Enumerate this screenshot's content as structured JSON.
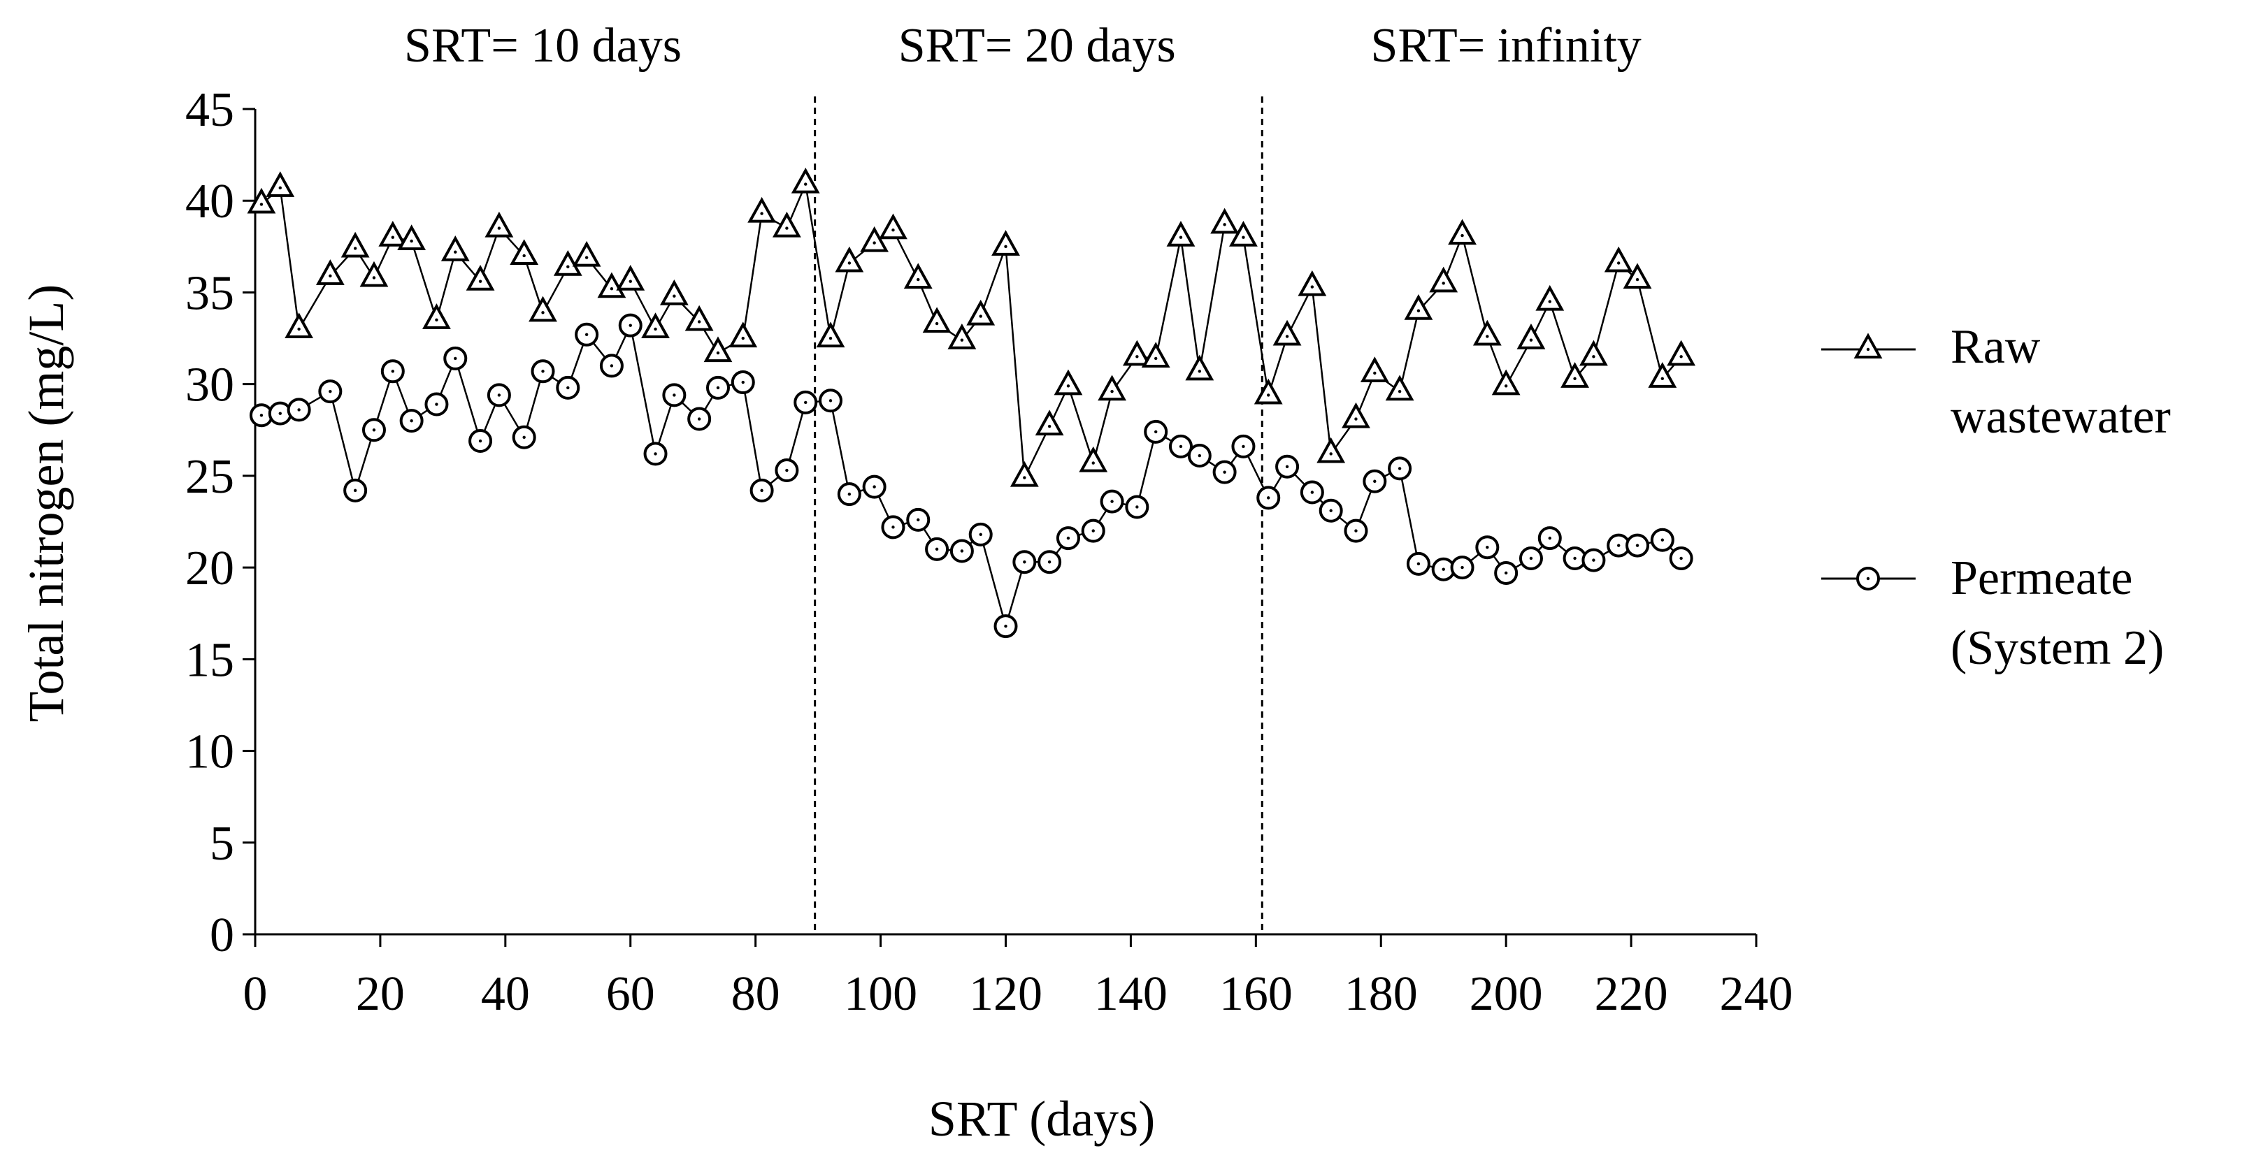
{
  "chart_data": {
    "type": "line",
    "title": "",
    "xlabel": "SRT (days)",
    "ylabel": "Total nitrogen (mg/L)",
    "xlim": [
      0,
      240
    ],
    "ylim": [
      0,
      45
    ],
    "x_ticks": [
      "0",
      "20",
      "40",
      "60",
      "80",
      "100",
      "120",
      "140",
      "160",
      "180",
      "200",
      "220",
      "240"
    ],
    "y_ticks": [
      "0",
      "5",
      "10",
      "15",
      "20",
      "25",
      "30",
      "35",
      "40",
      "45"
    ],
    "grid": false,
    "legend_position": "right",
    "phase_labels": [
      {
        "text": "SRT= 10 days",
        "x": 46
      },
      {
        "text": "SRT= 20 days",
        "x": 125
      },
      {
        "text": "SRT= infinity",
        "x": 200
      }
    ],
    "phase_boundaries": [
      89.5,
      161
    ],
    "series": [
      {
        "name": "Raw wastewater",
        "marker": "triangle",
        "x": [
          1,
          4,
          7,
          12,
          16,
          19,
          22,
          25,
          29,
          32,
          36,
          39,
          43,
          46,
          50,
          53,
          57,
          60,
          64,
          67,
          71,
          74,
          78,
          81,
          85,
          88,
          92,
          95,
          99,
          102,
          106,
          109,
          113,
          116,
          120,
          123,
          127,
          130,
          134,
          137,
          141,
          144,
          148,
          151,
          155,
          158,
          162,
          165,
          169,
          172,
          176,
          179,
          183,
          186,
          190,
          193,
          197,
          200,
          204,
          207,
          211,
          214,
          218,
          221,
          225,
          228
        ],
        "values": [
          39.8,
          40.7,
          33.0,
          35.9,
          37.4,
          35.8,
          38.0,
          37.8,
          33.5,
          37.2,
          35.6,
          38.5,
          37.0,
          33.9,
          36.4,
          36.9,
          35.2,
          35.6,
          33.0,
          34.8,
          33.4,
          31.7,
          32.5,
          39.3,
          38.5,
          40.9,
          32.5,
          36.6,
          37.7,
          38.4,
          35.7,
          33.3,
          32.4,
          33.7,
          37.5,
          24.9,
          27.7,
          29.9,
          25.7,
          29.6,
          31.5,
          31.4,
          38.0,
          30.7,
          38.7,
          38.0,
          29.4,
          32.6,
          35.3,
          26.2,
          28.1,
          30.6,
          29.6,
          34.0,
          35.5,
          38.1,
          32.6,
          29.9,
          32.4,
          34.5,
          30.3,
          31.5,
          36.6,
          35.7,
          30.3,
          31.5
        ]
      },
      {
        "name": "Permeate (System 2)",
        "marker": "circle",
        "x": [
          1,
          4,
          7,
          12,
          16,
          19,
          22,
          25,
          29,
          32,
          36,
          39,
          43,
          46,
          50,
          53,
          57,
          60,
          64,
          67,
          71,
          74,
          78,
          81,
          85,
          88,
          92,
          95,
          99,
          102,
          106,
          109,
          113,
          116,
          120,
          123,
          127,
          130,
          134,
          137,
          141,
          144,
          148,
          151,
          155,
          158,
          162,
          165,
          169,
          172,
          176,
          179,
          183,
          186,
          190,
          193,
          197,
          200,
          204,
          207,
          211,
          214,
          218,
          221,
          225,
          228
        ],
        "values": [
          28.3,
          28.4,
          28.6,
          29.6,
          24.2,
          27.5,
          30.7,
          28.0,
          28.9,
          31.4,
          26.9,
          29.4,
          27.1,
          30.7,
          29.8,
          32.7,
          31.0,
          33.2,
          26.2,
          29.4,
          28.1,
          29.8,
          30.1,
          24.2,
          25.3,
          29.0,
          29.1,
          24.0,
          24.4,
          22.2,
          22.6,
          21.0,
          20.9,
          21.8,
          16.8,
          20.3,
          20.3,
          21.6,
          22.0,
          23.6,
          23.3,
          27.4,
          26.6,
          26.1,
          25.2,
          26.6,
          23.8,
          25.5,
          24.1,
          23.1,
          22.0,
          24.7,
          25.4,
          20.2,
          19.9,
          20.0,
          21.1,
          19.7,
          20.5,
          21.6,
          20.5,
          20.4,
          21.2,
          21.2,
          21.5,
          20.5
        ]
      }
    ],
    "legend": [
      {
        "lines": [
          "Raw",
          "wastewater"
        ],
        "marker": "triangle"
      },
      {
        "lines": [
          "Permeate",
          "(System 2)"
        ],
        "marker": "circle"
      }
    ]
  }
}
